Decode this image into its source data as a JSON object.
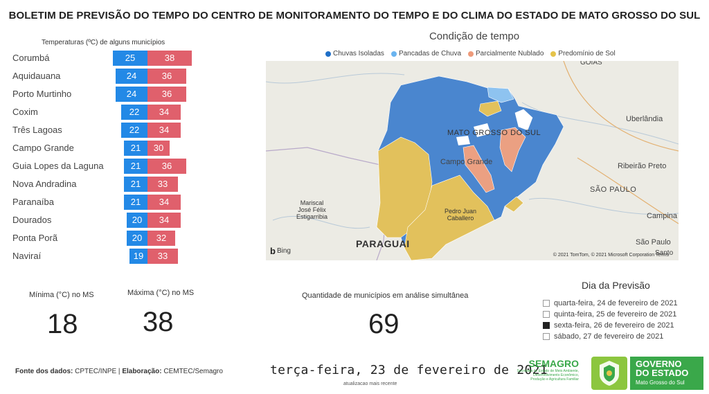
{
  "header": {
    "title": "BOLETIM DE PREVISÃO DO TEMPO DO CENTRO DE MONITORAMENTO DO TEMPO E DO CLIMA DO ESTADO DE MATO GROSSO DO SUL"
  },
  "temperatures": {
    "caption": "Temperaturas (ºC) de alguns municípios",
    "rows": [
      {
        "city": "Corumbá",
        "min": 25,
        "max": 38
      },
      {
        "city": "Aquidauana",
        "min": 24,
        "max": 36
      },
      {
        "city": "Porto Murtinho",
        "min": 24,
        "max": 36
      },
      {
        "city": "Coxim",
        "min": 22,
        "max": 34
      },
      {
        "city": "Três Lagoas",
        "min": 22,
        "max": 34
      },
      {
        "city": "Campo Grande",
        "min": 21,
        "max": 30
      },
      {
        "city": "Guia Lopes da Laguna",
        "min": 21,
        "max": 36
      },
      {
        "city": "Nova Andradina",
        "min": 21,
        "max": 33
      },
      {
        "city": "Paranaíba",
        "min": 21,
        "max": 34
      },
      {
        "city": "Dourados",
        "min": 20,
        "max": 34
      },
      {
        "city": "Ponta Porã",
        "min": 20,
        "max": 32
      },
      {
        "city": "Naviraí",
        "min": 19,
        "max": 33
      }
    ],
    "colors": {
      "min": "#2389e6",
      "max": "#e0606c"
    }
  },
  "map": {
    "title": "Condição de tempo",
    "legend": [
      {
        "label": "Chuvas Isoladas",
        "color": "#1f6fc7"
      },
      {
        "label": "Pancadas de Chuva",
        "color": "#6ab4f0"
      },
      {
        "label": "Parcialmente Nublado",
        "color": "#ee9a7a"
      },
      {
        "label": "Predomínio de Sol",
        "color": "#e5c34a"
      }
    ],
    "labels": {
      "state": "MATO GROSSO DO SUL",
      "campo_grande": "Campo Grande",
      "uberlandia": "Uberlândia",
      "ribeirao": "Ribeirão Preto",
      "sao_paulo_state": "SÃO PAULO",
      "campinas": "Campina",
      "sao_paulo_city": "São Paulo",
      "santo": "Santo",
      "goias": "GOIÁS",
      "paraguai": "PARAGUAI",
      "mariscal_1": "Mariscal",
      "mariscal_2": "José Félix",
      "mariscal_3": "Estigarribia",
      "pedro_1": "Pedro Juan",
      "pedro_2": "Caballero"
    },
    "bing": "Bing",
    "copyright": "© 2021 TomTom, © 2021 Microsoft Corporation  Terms"
  },
  "stats": {
    "min_label": "Mínima (°C) no MS",
    "min_value": "18",
    "max_label": "Máxima (°C) no MS",
    "max_value": "38",
    "count_label": "Quantidade de municípios em análise simultânea",
    "count_value": "69"
  },
  "forecast_day": {
    "title": "Dia da Previsão",
    "options": [
      {
        "label": "quarta-feira, 24 de fevereiro de 2021",
        "selected": false
      },
      {
        "label": "quinta-feira, 25 de fevereiro de 2021",
        "selected": false
      },
      {
        "label": "sexta-feira, 26 de fevereiro de 2021",
        "selected": true
      },
      {
        "label": "sábado, 27 de fevereiro de 2021",
        "selected": false
      }
    ]
  },
  "footer": {
    "source_label": "Fonte dos dados:",
    "source_value": "CPTEC/INPE",
    "sep": "|",
    "author_label": "Elaboração:",
    "author_value": "CEMTEC/Semagro",
    "date": "terça-feira, 23 de fevereiro de 2021",
    "date_sub": "atualizacao mais recente",
    "semagro_name": "SEMAGRO",
    "semagro_desc_1": "Secretaria de Estado de Meio Ambiente,",
    "semagro_desc_2": "Desenvolvimento Econômico,",
    "semagro_desc_3": "Produção e Agricultura Familiar",
    "gov_line1": "GOVERNO",
    "gov_line2": "DO ESTADO",
    "gov_line3": "Mato Grosso do Sul"
  }
}
